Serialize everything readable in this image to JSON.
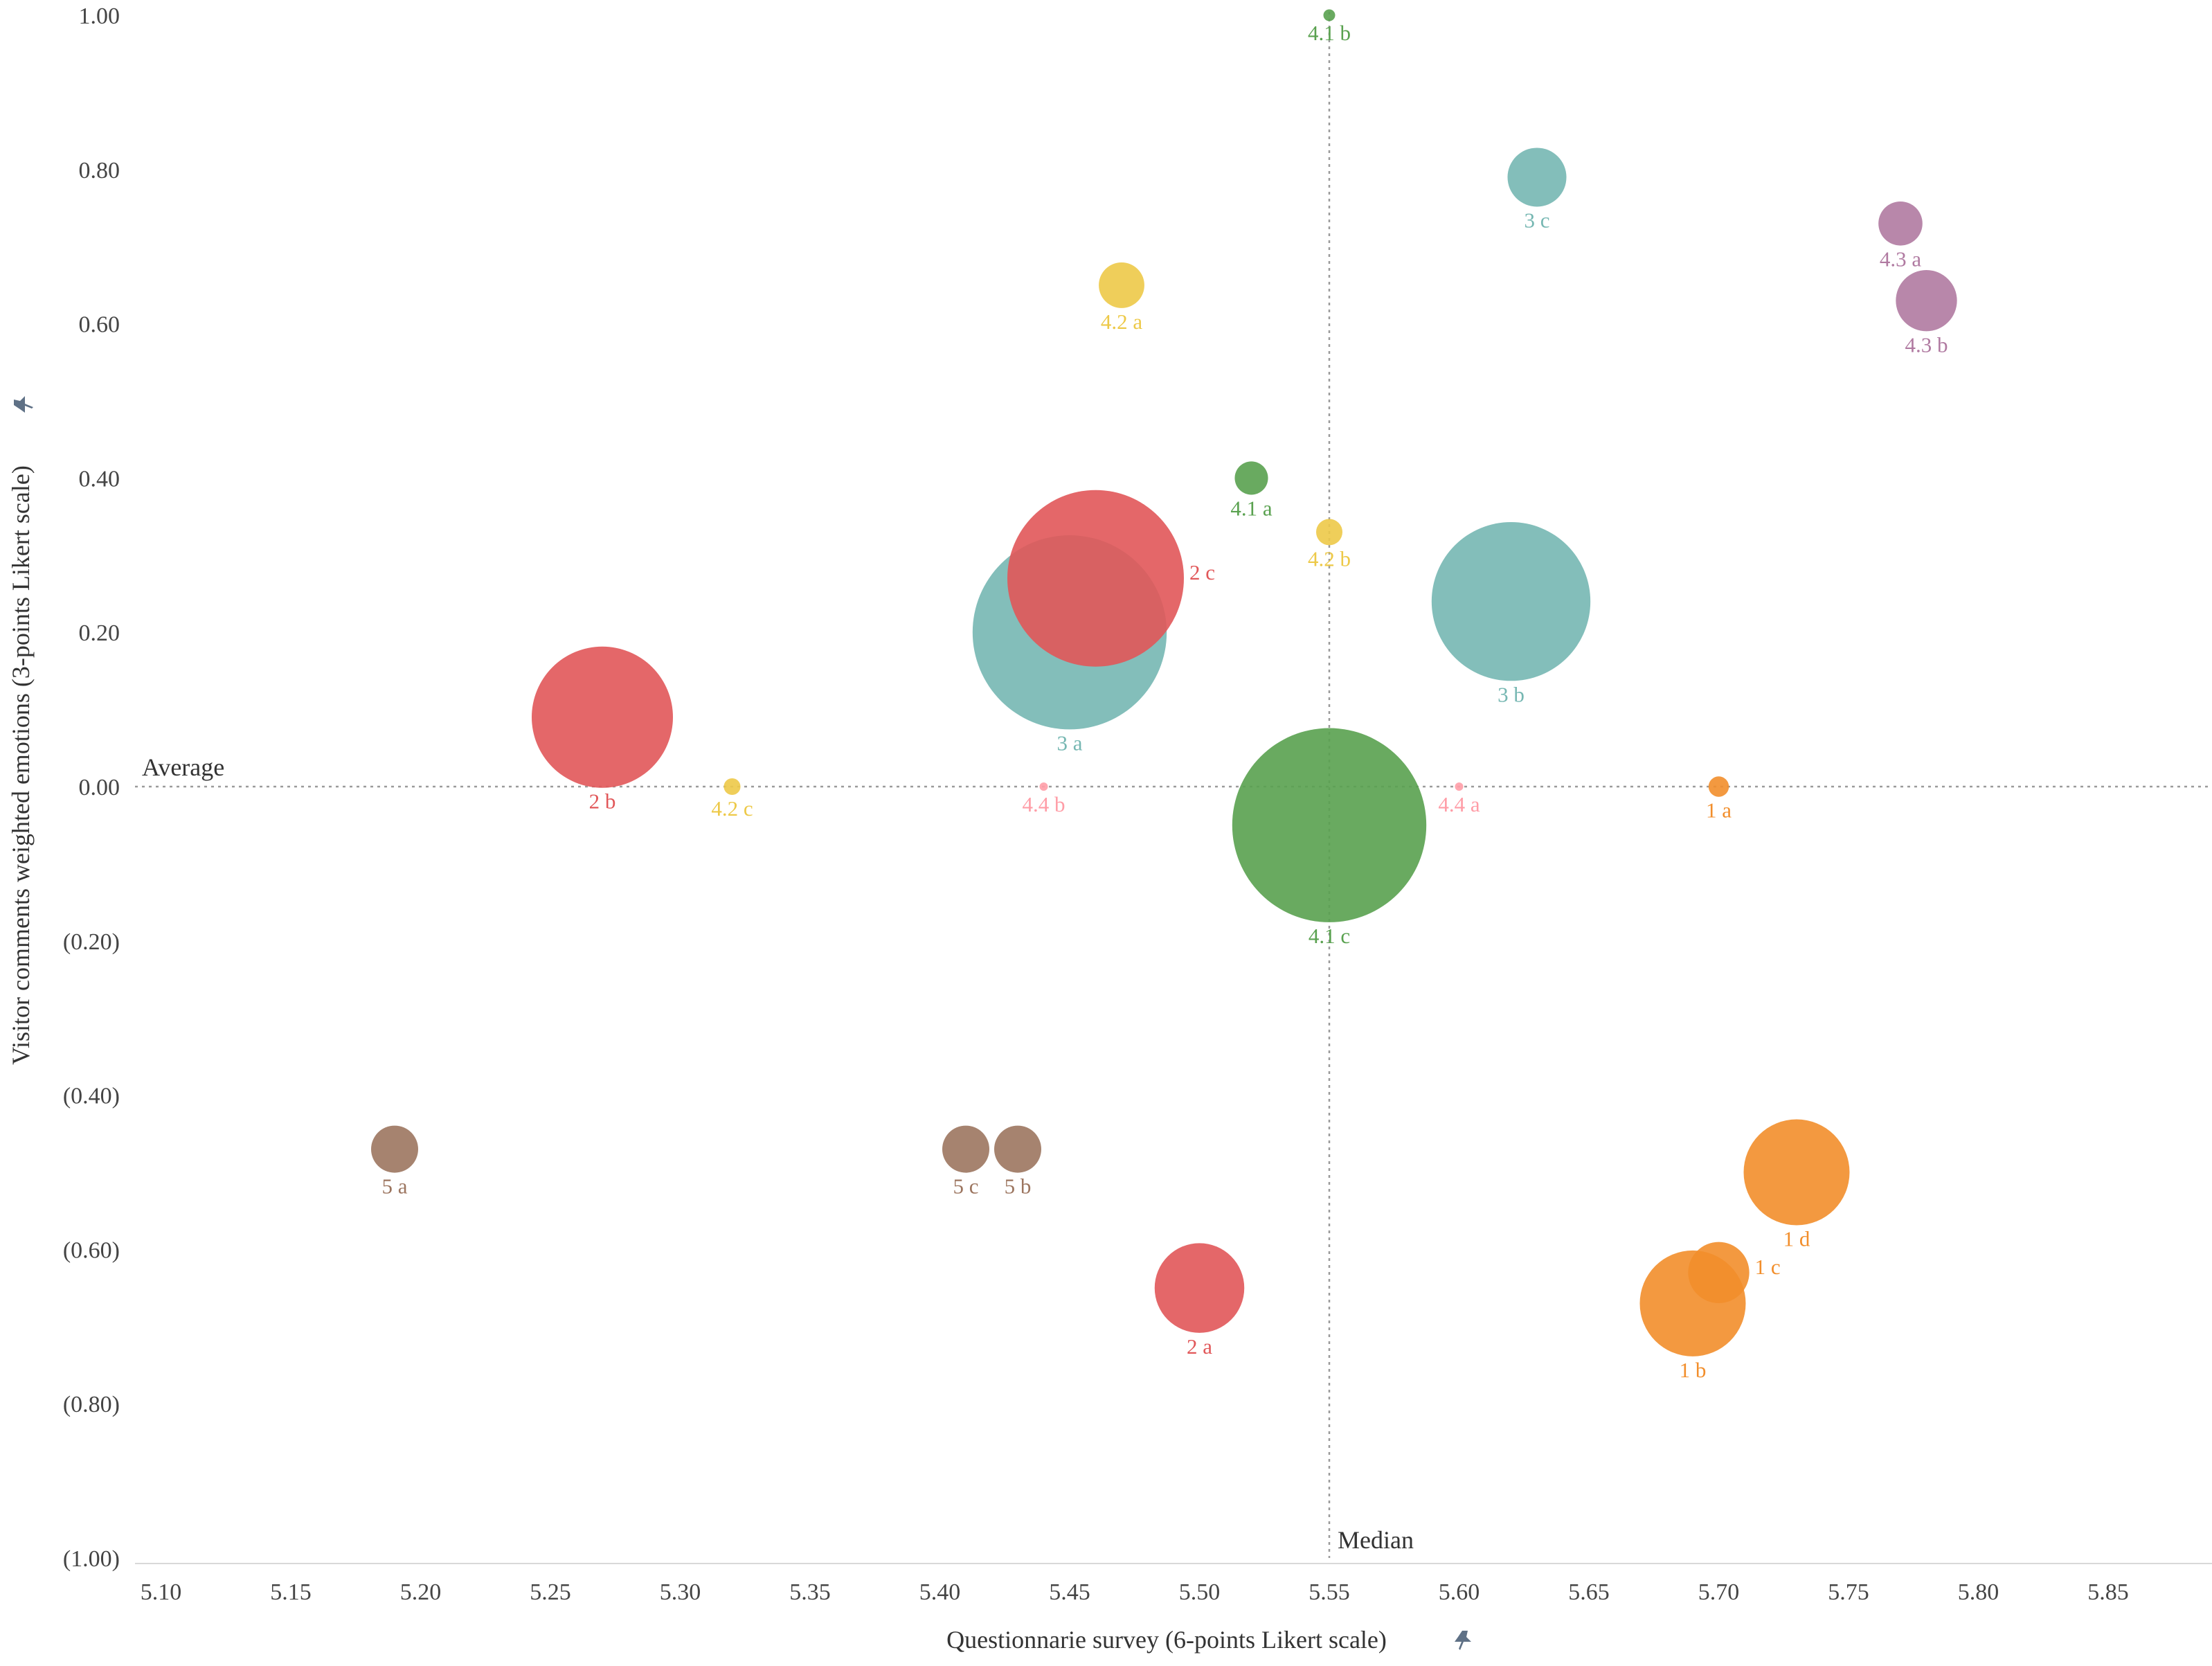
{
  "chart_data": {
    "type": "scatter",
    "subtype": "bubble",
    "xlabel": "Questionnarie survey (6-points Likert scale)",
    "ylabel": "Visitor comments weighted emotions (3-points Likert scale)",
    "xlim": [
      5.09,
      5.89
    ],
    "ylim": [
      -1.0,
      1.0
    ],
    "x_ticks": [
      5.1,
      5.15,
      5.2,
      5.25,
      5.3,
      5.35,
      5.4,
      5.45,
      5.5,
      5.55,
      5.6,
      5.65,
      5.7,
      5.75,
      5.8,
      5.85
    ],
    "x_tick_labels": [
      "5.10",
      "5.15",
      "5.20",
      "5.25",
      "5.30",
      "5.35",
      "5.40",
      "5.45",
      "5.50",
      "5.55",
      "5.60",
      "5.65",
      "5.70",
      "5.75",
      "5.80",
      "5.85"
    ],
    "y_ticks": [
      1.0,
      0.8,
      0.6,
      0.4,
      0.2,
      0.0,
      -0.2,
      -0.4,
      -0.6,
      -0.8,
      -1.0
    ],
    "y_tick_labels": [
      "1.00",
      "0.80",
      "0.60",
      "0.40",
      "0.20",
      "0.00",
      "(0.20)",
      "(0.40)",
      "(0.60)",
      "(0.80)",
      "(1.00)"
    ],
    "reference_lines": {
      "average": {
        "axis": "y",
        "value": 0.0,
        "label": "Average"
      },
      "median": {
        "axis": "x",
        "value": 5.55,
        "label": "Median"
      }
    },
    "colors": {
      "1": "#f28e2b",
      "2": "#e15759",
      "3": "#76b7b2",
      "4.1": "#59a14f",
      "4.2": "#edc948",
      "4.3": "#b07aa1",
      "4.4": "#ff9da7",
      "5": "#9c755f"
    },
    "points": [
      {
        "label": "1 a",
        "group": "1",
        "x": 5.7,
        "y": 0.0,
        "size": 0.03
      },
      {
        "label": "1 b",
        "group": "1",
        "x": 5.69,
        "y": -0.67,
        "size": 0.81
      },
      {
        "label": "1 c",
        "group": "1",
        "x": 5.7,
        "y": -0.63,
        "size": 0.27
      },
      {
        "label": "1 d",
        "group": "1",
        "x": 5.73,
        "y": -0.5,
        "size": 0.81
      },
      {
        "label": "2 a",
        "group": "2",
        "x": 5.5,
        "y": -0.65,
        "size": 0.58
      },
      {
        "label": "2 b",
        "group": "2",
        "x": 5.27,
        "y": 0.09,
        "size": 1.44
      },
      {
        "label": "2 c",
        "group": "2",
        "x": 5.46,
        "y": 0.27,
        "size": 2.25
      },
      {
        "label": "3 a",
        "group": "3",
        "x": 5.45,
        "y": 0.2,
        "size": 2.72
      },
      {
        "label": "3 b",
        "group": "3",
        "x": 5.62,
        "y": 0.24,
        "size": 1.82
      },
      {
        "label": "3 c",
        "group": "3",
        "x": 5.63,
        "y": 0.79,
        "size": 0.25
      },
      {
        "label": "4.1 a",
        "group": "4.1",
        "x": 5.52,
        "y": 0.4,
        "size": 0.08
      },
      {
        "label": "4.1 b",
        "group": "4.1",
        "x": 5.55,
        "y": 1.0,
        "size": 0.01
      },
      {
        "label": "4.1 c",
        "group": "4.1",
        "x": 5.55,
        "y": -0.05,
        "size": 2.72
      },
      {
        "label": "4.2 a",
        "group": "4.2",
        "x": 5.47,
        "y": 0.65,
        "size": 0.15
      },
      {
        "label": "4.2 b",
        "group": "4.2",
        "x": 5.55,
        "y": 0.33,
        "size": 0.05
      },
      {
        "label": "4.2 c",
        "group": "4.2",
        "x": 5.32,
        "y": 0.0,
        "size": 0.02
      },
      {
        "label": "4.3 a",
        "group": "4.3",
        "x": 5.77,
        "y": 0.73,
        "size": 0.14
      },
      {
        "label": "4.3 b",
        "group": "4.3",
        "x": 5.78,
        "y": 0.63,
        "size": 0.27
      },
      {
        "label": "4.4 a",
        "group": "4.4",
        "x": 5.6,
        "y": 0.0,
        "size": 0.005
      },
      {
        "label": "4.4 b",
        "group": "4.4",
        "x": 5.44,
        "y": 0.0,
        "size": 0.005
      },
      {
        "label": "5 a",
        "group": "5",
        "x": 5.19,
        "y": -0.47,
        "size": 0.16
      },
      {
        "label": "5 b",
        "group": "5",
        "x": 5.43,
        "y": -0.47,
        "size": 0.16
      },
      {
        "label": "5 c",
        "group": "5",
        "x": 5.41,
        "y": -0.47,
        "size": 0.16
      }
    ]
  }
}
